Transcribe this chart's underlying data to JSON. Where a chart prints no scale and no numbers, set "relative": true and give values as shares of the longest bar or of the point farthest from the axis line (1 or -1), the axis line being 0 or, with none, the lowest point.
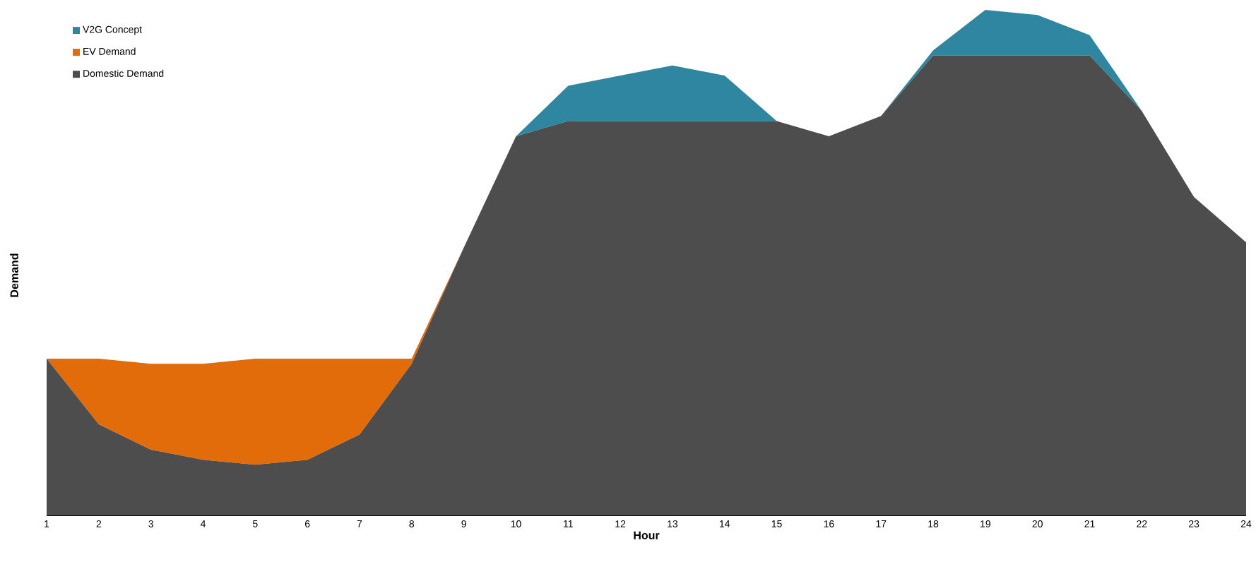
{
  "chart_data": {
    "type": "area",
    "stacked": true,
    "relative": true,
    "xlabel": "Hour",
    "ylabel": "Demand",
    "legend": "top left",
    "categories": [
      "1",
      "2",
      "3",
      "4",
      "5",
      "6",
      "7",
      "8",
      "9",
      "10",
      "11",
      "12",
      "13",
      "14",
      "15",
      "16",
      "17",
      "18",
      "19",
      "20",
      "21",
      "22",
      "23",
      "24"
    ],
    "series": [
      {
        "name": "Domestic Demand",
        "color": "#4d4d4d",
        "values": [
          0.31,
          0.18,
          0.13,
          0.11,
          0.1,
          0.11,
          0.16,
          0.3,
          0.53,
          0.75,
          0.78,
          0.78,
          0.78,
          0.78,
          0.78,
          0.75,
          0.79,
          0.91,
          0.91,
          0.91,
          0.91,
          0.8,
          0.63,
          0.54
        ]
      },
      {
        "name": "EV Demand",
        "color": "#e36c0a",
        "values": [
          0,
          0.13,
          0.17,
          0.19,
          0.21,
          0.2,
          0.15,
          0.01,
          0,
          0,
          0,
          0,
          0,
          0,
          0,
          0,
          0,
          0,
          0,
          0,
          0,
          0,
          0,
          0
        ]
      },
      {
        "name": "V2G Concept",
        "color": "#2e86a0",
        "values": [
          0,
          0,
          0,
          0,
          0,
          0,
          0,
          0,
          0,
          0,
          0.07,
          0.09,
          0.11,
          0.09,
          0,
          0,
          0,
          0.01,
          0.09,
          0.08,
          0.04,
          0,
          0,
          0
        ]
      }
    ]
  }
}
